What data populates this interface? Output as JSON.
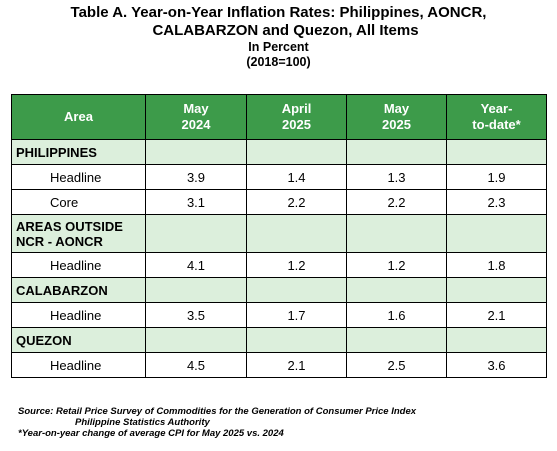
{
  "title": {
    "line1": "Table A. Year-on-Year Inflation Rates: Philippines, AONCR,",
    "line2": "CALABARZON and Quezon, All Items",
    "unit": "In Percent",
    "base": "(2018=100)"
  },
  "table": {
    "headers": {
      "area": "Area",
      "col1": [
        "May",
        "2024"
      ],
      "col2": [
        "April",
        "2025"
      ],
      "col3": [
        "May",
        "2025"
      ],
      "col4": [
        "Year-",
        "to-date*"
      ]
    },
    "sections": [
      {
        "name_lines": [
          "PHILIPPINES"
        ],
        "rows": [
          {
            "label": "Headline",
            "values": [
              "3.9",
              "1.4",
              "1.3",
              "1.9"
            ]
          },
          {
            "label": "Core",
            "values": [
              "3.1",
              "2.2",
              "2.2",
              "2.3"
            ]
          }
        ]
      },
      {
        "name_lines": [
          "AREAS OUTSIDE",
          "NCR - AONCR"
        ],
        "rows": [
          {
            "label": "Headline",
            "values": [
              "4.1",
              "1.2",
              "1.2",
              "1.8"
            ]
          }
        ]
      },
      {
        "name_lines": [
          "CALABARZON"
        ],
        "rows": [
          {
            "label": "Headline",
            "values": [
              "3.5",
              "1.7",
              "1.6",
              "2.1"
            ]
          }
        ]
      },
      {
        "name_lines": [
          "QUEZON"
        ],
        "rows": [
          {
            "label": "Headline",
            "values": [
              "4.5",
              "2.1",
              "2.5",
              "3.6"
            ]
          }
        ]
      }
    ]
  },
  "footnotes": {
    "source_line1": "Source: Retail Price Survey of Commodities for the Generation of Consumer Price Index",
    "source_line2": "Philippine Statistics Authority",
    "note": "*Year-on-year change of average CPI for May  2025 vs. 2024"
  },
  "colors": {
    "header_bg": "#3d9b4a",
    "section_bg": "#dcefdc"
  }
}
